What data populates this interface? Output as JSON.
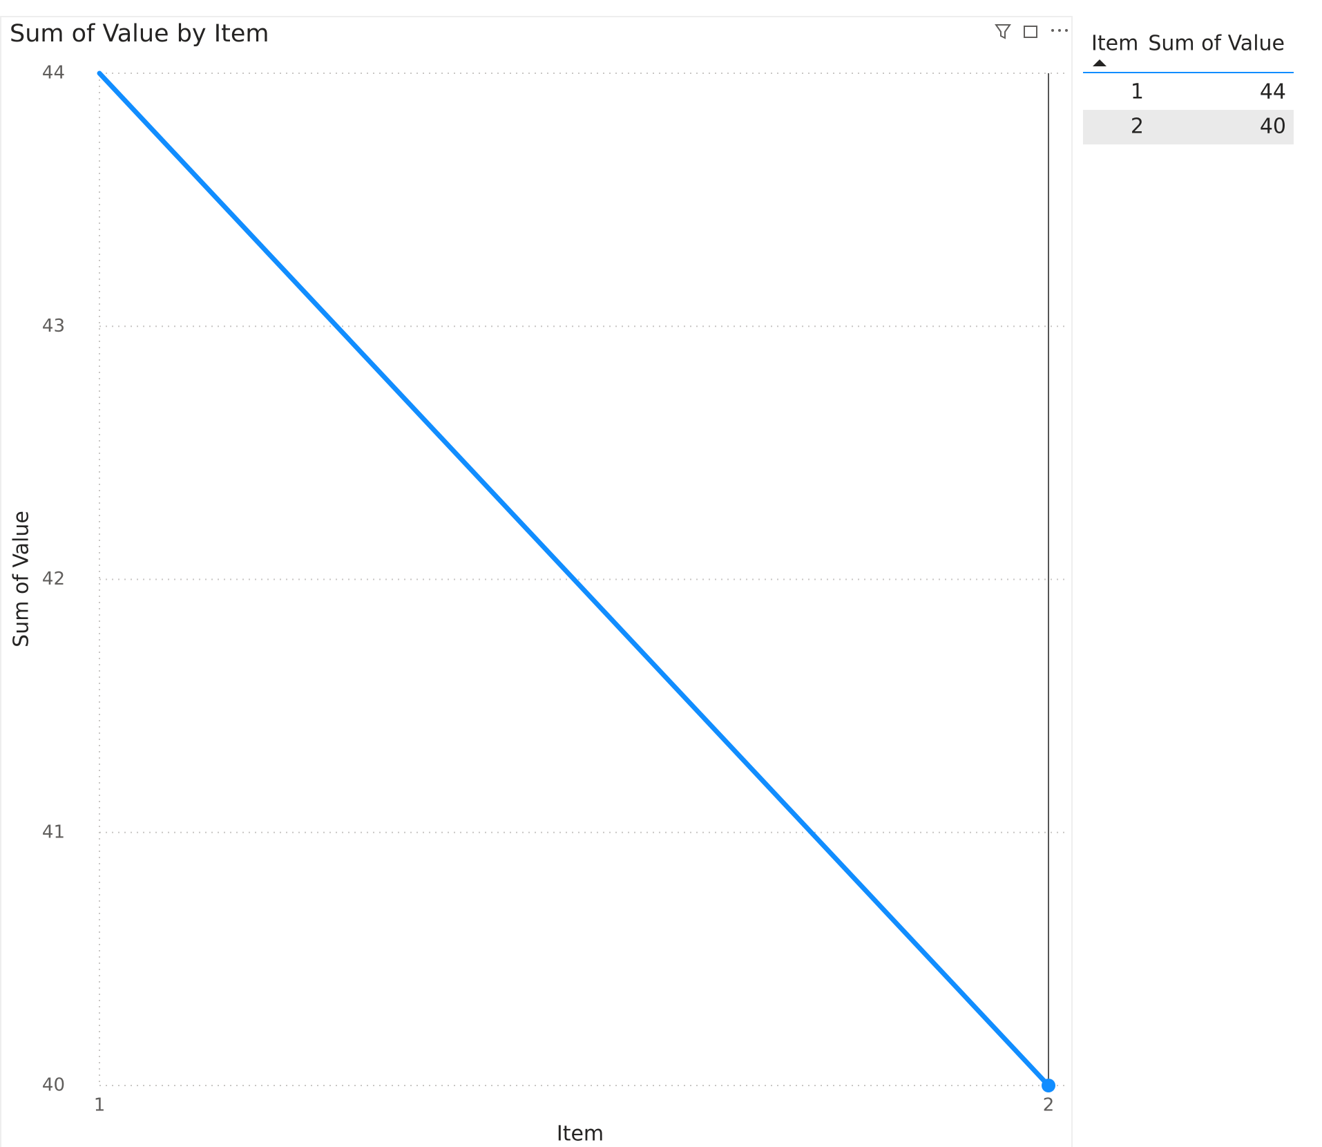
{
  "chart_data": {
    "type": "line",
    "title": "Sum of Value by Item",
    "x_label": "Item",
    "y_label": "Sum of Value",
    "x": [
      1,
      2
    ],
    "series": [
      {
        "name": "Sum of Value",
        "color": "#118dff",
        "values": [
          44,
          40
        ]
      }
    ],
    "xlim": [
      1,
      2
    ],
    "xticks": [
      1,
      2
    ],
    "ylim": [
      40,
      44
    ],
    "yticks": [
      40,
      41,
      42,
      43,
      44
    ],
    "grid": true
  },
  "table": {
    "headers": [
      "Item",
      "Sum of Value"
    ],
    "rows": [
      [
        1,
        44
      ],
      [
        2,
        40
      ]
    ]
  }
}
